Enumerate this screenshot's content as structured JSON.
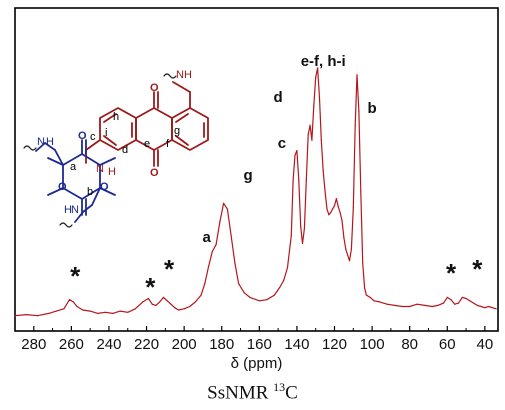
{
  "chart_data": {
    "type": "line",
    "xlabel": "δ (ppm)",
    "xlim": [
      290,
      33
    ],
    "x_reversed": true,
    "x_ticks": [
      280,
      260,
      240,
      220,
      200,
      180,
      160,
      140,
      120,
      100,
      80,
      60,
      40
    ],
    "series": [
      {
        "color": "#b5161b",
        "x": [
          290,
          284,
          278,
          272,
          268,
          264,
          261,
          259,
          257,
          254,
          250,
          246,
          242,
          238,
          234,
          230,
          226,
          222,
          219,
          217,
          215,
          213,
          211,
          209,
          207,
          205,
          203,
          200,
          197,
          194,
          191,
          189,
          187,
          185,
          183,
          181,
          179,
          177,
          175,
          173,
          171,
          168,
          165,
          160,
          156,
          152,
          149,
          147,
          145,
          143,
          142,
          141,
          140,
          139,
          138,
          137,
          136,
          135,
          134,
          133,
          132,
          131,
          130,
          129,
          128,
          127,
          126,
          125,
          124,
          123,
          122,
          121,
          120,
          119,
          118,
          117,
          116,
          115,
          114,
          113,
          112,
          111,
          110,
          109,
          108,
          107,
          106,
          105,
          104,
          103,
          101,
          99,
          96,
          92,
          88,
          84,
          80,
          76,
          72,
          68,
          65,
          62,
          60,
          58,
          56,
          54,
          52,
          50,
          48,
          46,
          44,
          42,
          40,
          38,
          36,
          34
        ],
        "y": [
          2,
          3,
          2,
          4,
          6,
          8,
          16,
          14,
          10,
          7,
          6,
          4,
          5,
          4,
          6,
          5,
          8,
          14,
          17,
          12,
          11,
          14,
          18,
          15,
          12,
          9,
          7,
          8,
          10,
          14,
          20,
          30,
          45,
          58,
          64,
          84,
          100,
          95,
          72,
          48,
          30,
          22,
          18,
          15,
          16,
          20,
          27,
          33,
          44,
          72,
          120,
          142,
          146,
          120,
          80,
          65,
          78,
          120,
          160,
          168,
          155,
          185,
          210,
          218,
          192,
          155,
          128,
          110,
          95,
          90,
          92,
          95,
          98,
          104,
          97,
          92,
          85,
          70,
          60,
          55,
          50,
          60,
          96,
          168,
          212,
          180,
          110,
          48,
          26,
          20,
          18,
          15,
          14,
          12,
          11,
          10,
          10,
          12,
          11,
          10,
          11,
          13,
          18,
          16,
          12,
          13,
          18,
          17,
          15,
          13,
          11,
          10,
          9,
          10,
          9,
          8
        ]
      }
    ],
    "annotations": [
      {
        "text": "e-f, h-i",
        "ppm": 126
      },
      {
        "text": "d",
        "ppm": 150
      },
      {
        "text": "c",
        "ppm": 148
      },
      {
        "text": "b",
        "ppm": 100
      },
      {
        "text": "g",
        "ppm": 166
      },
      {
        "text": "a",
        "ppm": 188
      },
      {
        "text": "*",
        "ppm": 258
      },
      {
        "text": "*",
        "ppm": 218
      },
      {
        "text": "*",
        "ppm": 208
      },
      {
        "text": "*",
        "ppm": 58
      },
      {
        "text": "*",
        "ppm": 44
      }
    ]
  },
  "structure_labels": {
    "a": "a",
    "b": "b",
    "c": "c",
    "d": "d",
    "e": "e",
    "f": "f",
    "g": "g",
    "h": "h",
    "i": "i",
    "nh": "N",
    "h_atom": "H",
    "o": "O",
    "nh_top": "NH",
    "h_top": "H"
  },
  "caption": {
    "prefix": "SsNMR",
    "superscript": "13",
    "suffix": "C"
  }
}
